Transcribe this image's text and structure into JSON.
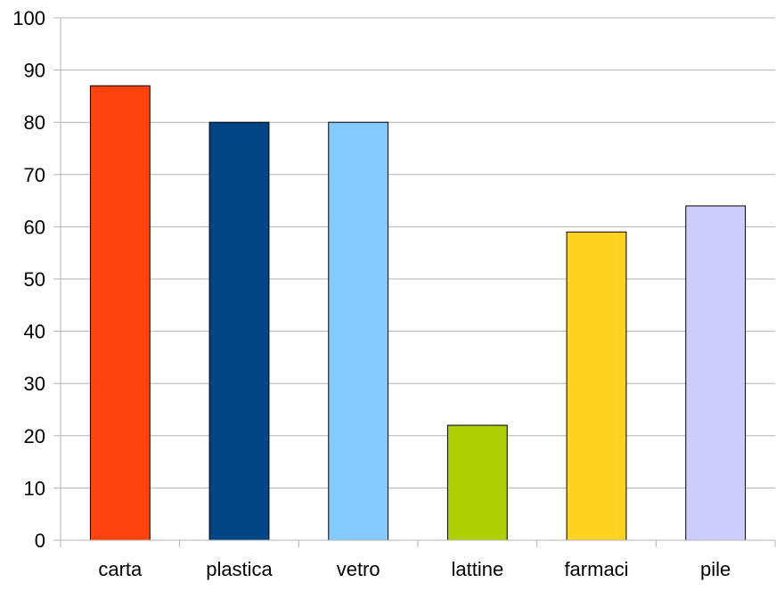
{
  "chart_data": {
    "type": "bar",
    "title": "",
    "xlabel": "",
    "ylabel": "",
    "categories": [
      "carta",
      "plastica",
      "vetro",
      "lattine",
      "farmaci",
      "pile"
    ],
    "values": [
      87,
      80,
      80,
      22,
      59,
      64
    ],
    "colors": [
      "#ff420e",
      "#004586",
      "#83caff",
      "#aecf00",
      "#ffd320",
      "#ccccff"
    ],
    "ylim": [
      0,
      100
    ],
    "yticks": [
      "0",
      "10",
      "20",
      "30",
      "40",
      "50",
      "60",
      "70",
      "80",
      "90",
      "100"
    ],
    "grid": true,
    "legend": "none"
  }
}
